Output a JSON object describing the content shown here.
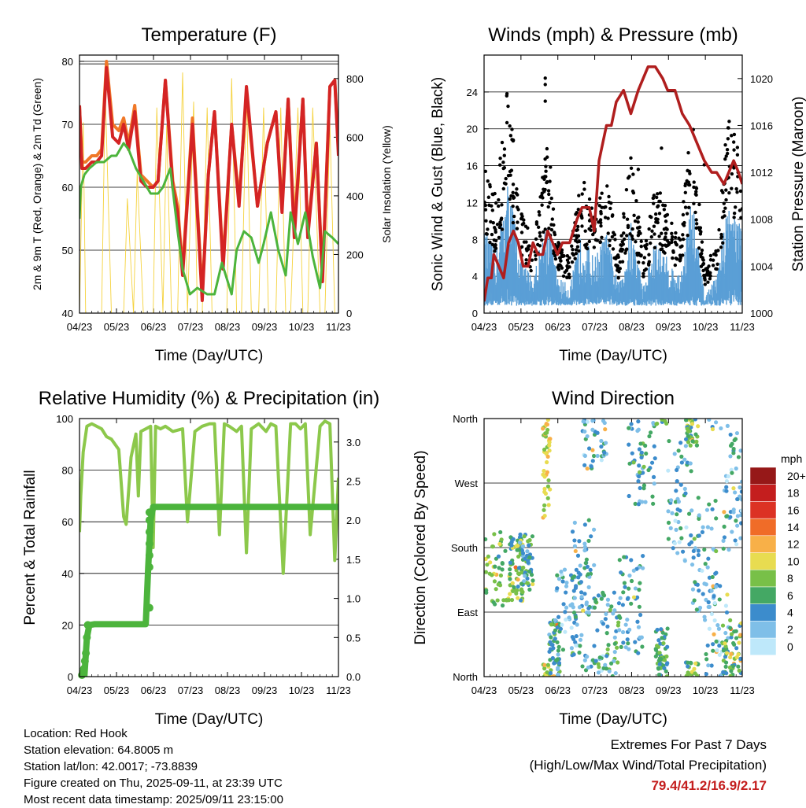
{
  "info": {
    "location": "Location: Red Hook",
    "elevation": "Station elevation: 64.8005 m",
    "latlon": "Station lat/lon: 42.0017; -73.8839",
    "created": "Figure created on Thu, 2025-09-11, at 23:39 UTC",
    "recent": "Most recent data timestamp: 2025/09/11 23:15:00"
  },
  "extremes": {
    "line1": "Extremes For Past 7 Days",
    "line2": "(High/Low/Max Wind/Total Precipitation)",
    "values": "79.4/41.2/16.9/2.17"
  },
  "chart_data": [
    {
      "type": "line",
      "title": "Temperature (F)",
      "xlabel": "Time (Day/UTC)",
      "ylabel": "2m & 9m T (Red, Orange) & 2m Td (Green)",
      "ylabel_right": "Solar Insolation (Yellow)",
      "xlim": [
        0,
        211
      ],
      "x_ticks": [
        "04/23",
        "05/23",
        "06/23",
        "07/23",
        "08/23",
        "09/23",
        "10/23",
        "11/23"
      ],
      "ylim": [
        40,
        81
      ],
      "yticks": [
        40,
        50,
        60,
        70,
        80
      ],
      "ylim_right": [
        0,
        880
      ],
      "yticks_right": [
        0,
        200,
        400,
        600,
        800
      ],
      "series": [
        {
          "color": "#d42424",
          "x": [
            0,
            2,
            5,
            10,
            14,
            18,
            22,
            27,
            32,
            36,
            40,
            45,
            50,
            55,
            60,
            64,
            70,
            76,
            80,
            84,
            92,
            100,
            105,
            110,
            117,
            124,
            130,
            136,
            145,
            153,
            160,
            165,
            170,
            175,
            182,
            186,
            193,
            198,
            204,
            208,
            211
          ],
          "values": [
            73,
            63,
            63,
            64,
            64,
            65,
            79,
            68,
            67,
            70,
            66,
            72,
            61,
            60,
            60,
            61,
            77,
            60,
            56,
            46,
            70,
            42,
            62,
            72,
            47,
            70,
            57,
            76,
            57,
            67,
            72,
            56,
            74,
            52,
            74,
            52,
            67,
            45,
            76,
            77,
            65
          ]
        },
        {
          "color": "#f07828",
          "x": [
            0,
            2,
            5,
            10,
            14,
            18,
            22,
            27,
            32,
            36,
            40,
            45,
            50,
            55,
            60,
            64,
            70,
            76,
            80,
            84,
            92,
            100,
            105,
            110,
            117,
            124,
            130,
            136,
            145,
            153,
            160,
            165,
            170,
            175,
            182,
            186,
            193,
            198,
            204,
            208,
            211
          ],
          "values": [
            73,
            64,
            64,
            65,
            65,
            66,
            80,
            70,
            69,
            71,
            67,
            73,
            62,
            61,
            60,
            61,
            77,
            61,
            57,
            47,
            71,
            43,
            62,
            72,
            48,
            70,
            58,
            75,
            57,
            67,
            72,
            57,
            74,
            53,
            74,
            53,
            67,
            46,
            76,
            77,
            66
          ]
        },
        {
          "color": "#4cb43c",
          "x": [
            0,
            1,
            4,
            8,
            14,
            20,
            26,
            30,
            36,
            40,
            46,
            52,
            58,
            64,
            68,
            74,
            80,
            84,
            90,
            96,
            104,
            110,
            116,
            124,
            128,
            134,
            140,
            146,
            150,
            156,
            162,
            168,
            172,
            178,
            184,
            190,
            196,
            200,
            206,
            211
          ],
          "values": [
            55,
            60,
            62,
            63,
            64,
            64,
            65,
            65,
            67,
            66,
            63,
            61,
            59,
            59,
            60,
            63,
            53,
            47,
            43,
            44,
            43,
            43,
            48,
            43,
            50,
            53,
            52,
            48,
            51,
            56,
            50,
            46,
            56,
            51,
            56,
            49,
            44,
            53,
            52,
            51
          ]
        },
        {
          "color": "#f5d23c",
          "x": [
            0,
            3,
            5,
            8,
            18,
            21,
            26,
            28,
            36,
            39,
            44,
            47,
            52,
            55,
            60,
            63,
            68,
            71,
            75,
            80,
            84,
            88,
            93,
            96,
            100,
            104,
            108,
            114,
            120,
            124,
            128,
            132,
            136,
            140,
            146,
            150,
            154,
            160,
            164,
            168,
            172,
            178,
            182,
            186,
            190,
            196,
            200,
            204,
            208,
            211
          ],
          "values": [
            0,
            650,
            0,
            0,
            0,
            760,
            0,
            0,
            0,
            390,
            0,
            480,
            0,
            0,
            0,
            700,
            0,
            640,
            0,
            0,
            820,
            0,
            720,
            0,
            0,
            700,
            0,
            0,
            0,
            800,
            0,
            0,
            760,
            0,
            0,
            700,
            0,
            0,
            700,
            0,
            0,
            700,
            0,
            0,
            700,
            0,
            0,
            650,
            0,
            0
          ]
        }
      ]
    },
    {
      "type": "scatter",
      "title": "Winds (mph) & Pressure (mb)",
      "xlabel": "Time (Day/UTC)",
      "ylabel": "Sonic Wind & Gust (Blue, Black)",
      "ylabel_right": "Station Pressure (Maroon)",
      "xlim": [
        0,
        211
      ],
      "x_ticks": [
        "04/23",
        "05/23",
        "06/23",
        "07/23",
        "08/23",
        "09/23",
        "10/23",
        "11/23"
      ],
      "ylim": [
        0,
        28
      ],
      "yticks": [
        0,
        4,
        8,
        12,
        16,
        20,
        24
      ],
      "ylim_right": [
        1000,
        1022
      ],
      "yticks_right": [
        1000,
        1004,
        1008,
        1012,
        1016,
        1020
      ],
      "series": [
        {
          "color": "#b01e1e",
          "x": [
            0,
            3,
            6,
            8,
            12,
            16,
            20,
            24,
            28,
            32,
            36,
            40,
            44,
            48,
            52,
            56,
            60,
            64,
            70,
            76,
            80,
            86,
            90,
            94,
            100,
            104,
            108,
            114,
            120,
            126,
            130,
            134,
            140,
            146,
            150,
            156,
            162,
            168,
            172,
            176,
            180,
            186,
            190,
            196,
            200,
            204,
            208,
            211
          ],
          "values": [
            1001,
            1003,
            1003,
            1005,
            1004,
            1003,
            1006,
            1007,
            1006,
            1004,
            1004,
            1006,
            1005,
            1005,
            1007,
            1006,
            1005,
            1006,
            1006,
            1008,
            1009,
            1009,
            1007,
            1013,
            1016,
            1016,
            1018,
            1019,
            1017,
            1019,
            1020,
            1021,
            1021,
            1020,
            1019,
            1019,
            1017,
            1016,
            1015,
            1014,
            1013,
            1012,
            1012,
            1011,
            1012,
            1013,
            1012,
            1011
          ]
        }
      ]
    },
    {
      "type": "line",
      "title": "Relative Humidity (%) & Precipitation (in)",
      "xlabel": "Time (Day/UTC)",
      "ylabel": "Percent & Total Rainfall",
      "xlim": [
        0,
        211
      ],
      "x_ticks": [
        "04/23",
        "05/23",
        "06/23",
        "07/23",
        "08/23",
        "09/23",
        "10/23",
        "11/23"
      ],
      "ylim": [
        0,
        100
      ],
      "yticks": [
        0,
        20,
        40,
        60,
        80,
        100
      ],
      "ylim_right": [
        0,
        3.3
      ],
      "yticks_right": [
        "0.0",
        "0.5",
        "1.0",
        "1.5",
        "2.0",
        "2.5",
        "3.0"
      ],
      "series": [
        {
          "color": "#8cc84b",
          "x": [
            0,
            1,
            3,
            6,
            10,
            18,
            22,
            26,
            32,
            36,
            38,
            42,
            46,
            48,
            50,
            54,
            58,
            60,
            62,
            66,
            70,
            76,
            84,
            88,
            94,
            100,
            106,
            110,
            114,
            118,
            122,
            128,
            132,
            136,
            140,
            146,
            152,
            156,
            160,
            166,
            172,
            176,
            180,
            184,
            188,
            196,
            200,
            204,
            208,
            211
          ],
          "values": [
            56,
            70,
            87,
            97,
            98,
            96,
            93,
            92,
            88,
            62,
            59,
            85,
            94,
            70,
            95,
            96,
            97,
            50,
            97,
            96,
            97,
            95,
            96,
            60,
            95,
            97,
            98,
            98,
            55,
            98,
            97,
            95,
            97,
            48,
            96,
            98,
            95,
            98,
            97,
            40,
            98,
            98,
            96,
            98,
            55,
            97,
            99,
            98,
            45,
            77
          ]
        },
        {
          "color": "#4cb43c",
          "x": [
            0,
            4,
            6,
            8,
            12,
            20,
            30,
            40,
            50,
            54,
            56,
            58,
            60,
            70,
            80,
            100,
            120,
            140,
            160,
            180,
            200,
            211
          ],
          "values": [
            0,
            0,
            0.5,
            0.66,
            0.67,
            0.67,
            0.67,
            0.67,
            0.67,
            0.67,
            1.4,
            2.0,
            2.17,
            2.17,
            2.17,
            2.17,
            2.17,
            2.17,
            2.17,
            2.17,
            2.17,
            2.17
          ]
        }
      ]
    },
    {
      "type": "scatter",
      "title": "Wind Direction",
      "xlabel": "Time (Day/UTC)",
      "ylabel": "Direction (Colored By Speed)",
      "xlim": [
        0,
        211
      ],
      "x_ticks": [
        "04/23",
        "05/23",
        "06/23",
        "07/23",
        "08/23",
        "09/23",
        "10/23",
        "11/23"
      ],
      "y_ticks": [
        "North",
        "East",
        "South",
        "West",
        "North"
      ],
      "colorbar_title": "mph",
      "colorbar_labels": [
        "0",
        "2",
        "4",
        "6",
        "8",
        "10",
        "12",
        "14",
        "16",
        "18",
        "20+"
      ],
      "colorbar_colors": [
        "#bee8fa",
        "#7fbfe8",
        "#3c8ccc",
        "#44a864",
        "#78c048",
        "#e8dc50",
        "#f8b048",
        "#f06c28",
        "#dc3224",
        "#c41e1e",
        "#961818"
      ]
    }
  ]
}
